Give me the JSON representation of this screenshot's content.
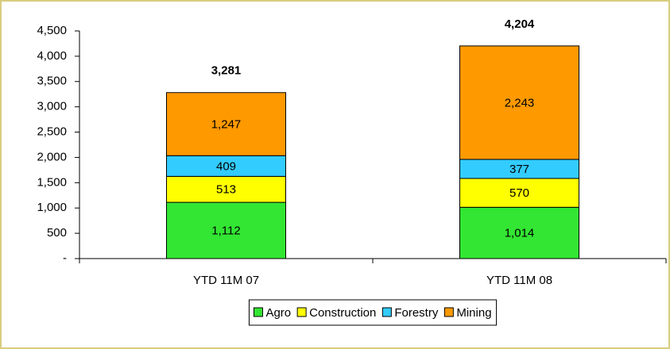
{
  "chart_data": {
    "type": "stacked_bar",
    "categories": [
      "YTD 11M 07",
      "YTD 11M 08"
    ],
    "series": [
      {
        "name": "Agro",
        "color": "#33e633",
        "values": [
          1112,
          1014
        ],
        "value_labels": [
          "1,112",
          "1,014"
        ]
      },
      {
        "name": "Construction",
        "color": "#ffff00",
        "values": [
          513,
          570
        ]
      },
      {
        "name": "Forestry",
        "color": "#33ccff",
        "values": [
          409,
          377
        ]
      },
      {
        "name": "Mining",
        "color": "#ff9900",
        "values": [
          1247,
          2243
        ],
        "value_labels": [
          "1,247",
          "2,243"
        ]
      }
    ],
    "totals": [
      3281,
      4204
    ],
    "total_labels": [
      "3,281",
      "4,204"
    ],
    "ylim": [
      0,
      4500
    ],
    "yticks": [
      {
        "value": 0,
        "label": "-"
      },
      500,
      {
        "value": 1000,
        "label": "1,000"
      },
      {
        "value": 1500,
        "label": "1,500"
      },
      {
        "value": 2000,
        "label": "2,000"
      },
      {
        "value": 2500,
        "label": "2,500"
      },
      {
        "value": 3000,
        "label": "3,000"
      },
      {
        "value": 3500,
        "label": "3,500"
      },
      {
        "value": 4000,
        "label": "4,000"
      },
      {
        "value": 4500,
        "label": "4,500"
      }
    ],
    "legend": "bottom"
  }
}
